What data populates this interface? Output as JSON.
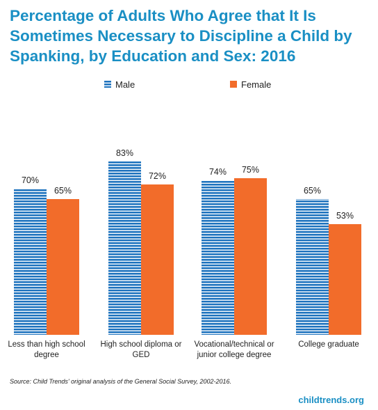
{
  "title": "Percentage of Adults Who Agree that It Is Sometimes Necessary to Discipline a Child by Spanking, by Education and Sex: 2016",
  "source": "Source: Child Trends' original analysis of the General Social Survey, 2002-2016.",
  "brand": "childtrends.org",
  "colors": {
    "male": "#1e73be",
    "female": "#f26c2a",
    "title": "#1a8fc4"
  },
  "chart_data": {
    "type": "bar",
    "categories": [
      [
        "Less than high school",
        "degree"
      ],
      [
        "High school diploma or",
        "GED"
      ],
      [
        "Vocational/technical or",
        "junior college degree"
      ],
      [
        "College graduate"
      ]
    ],
    "series": [
      {
        "name": "Male",
        "values": [
          70,
          83,
          74,
          65
        ],
        "labels": [
          "70%",
          "83%",
          "74%",
          "65%"
        ]
      },
      {
        "name": "Female",
        "values": [
          65,
          72,
          75,
          53
        ],
        "labels": [
          "65%",
          "72%",
          "75%",
          "53%"
        ]
      }
    ],
    "ylim": [
      0,
      100
    ],
    "legend": "top",
    "grid": false
  }
}
